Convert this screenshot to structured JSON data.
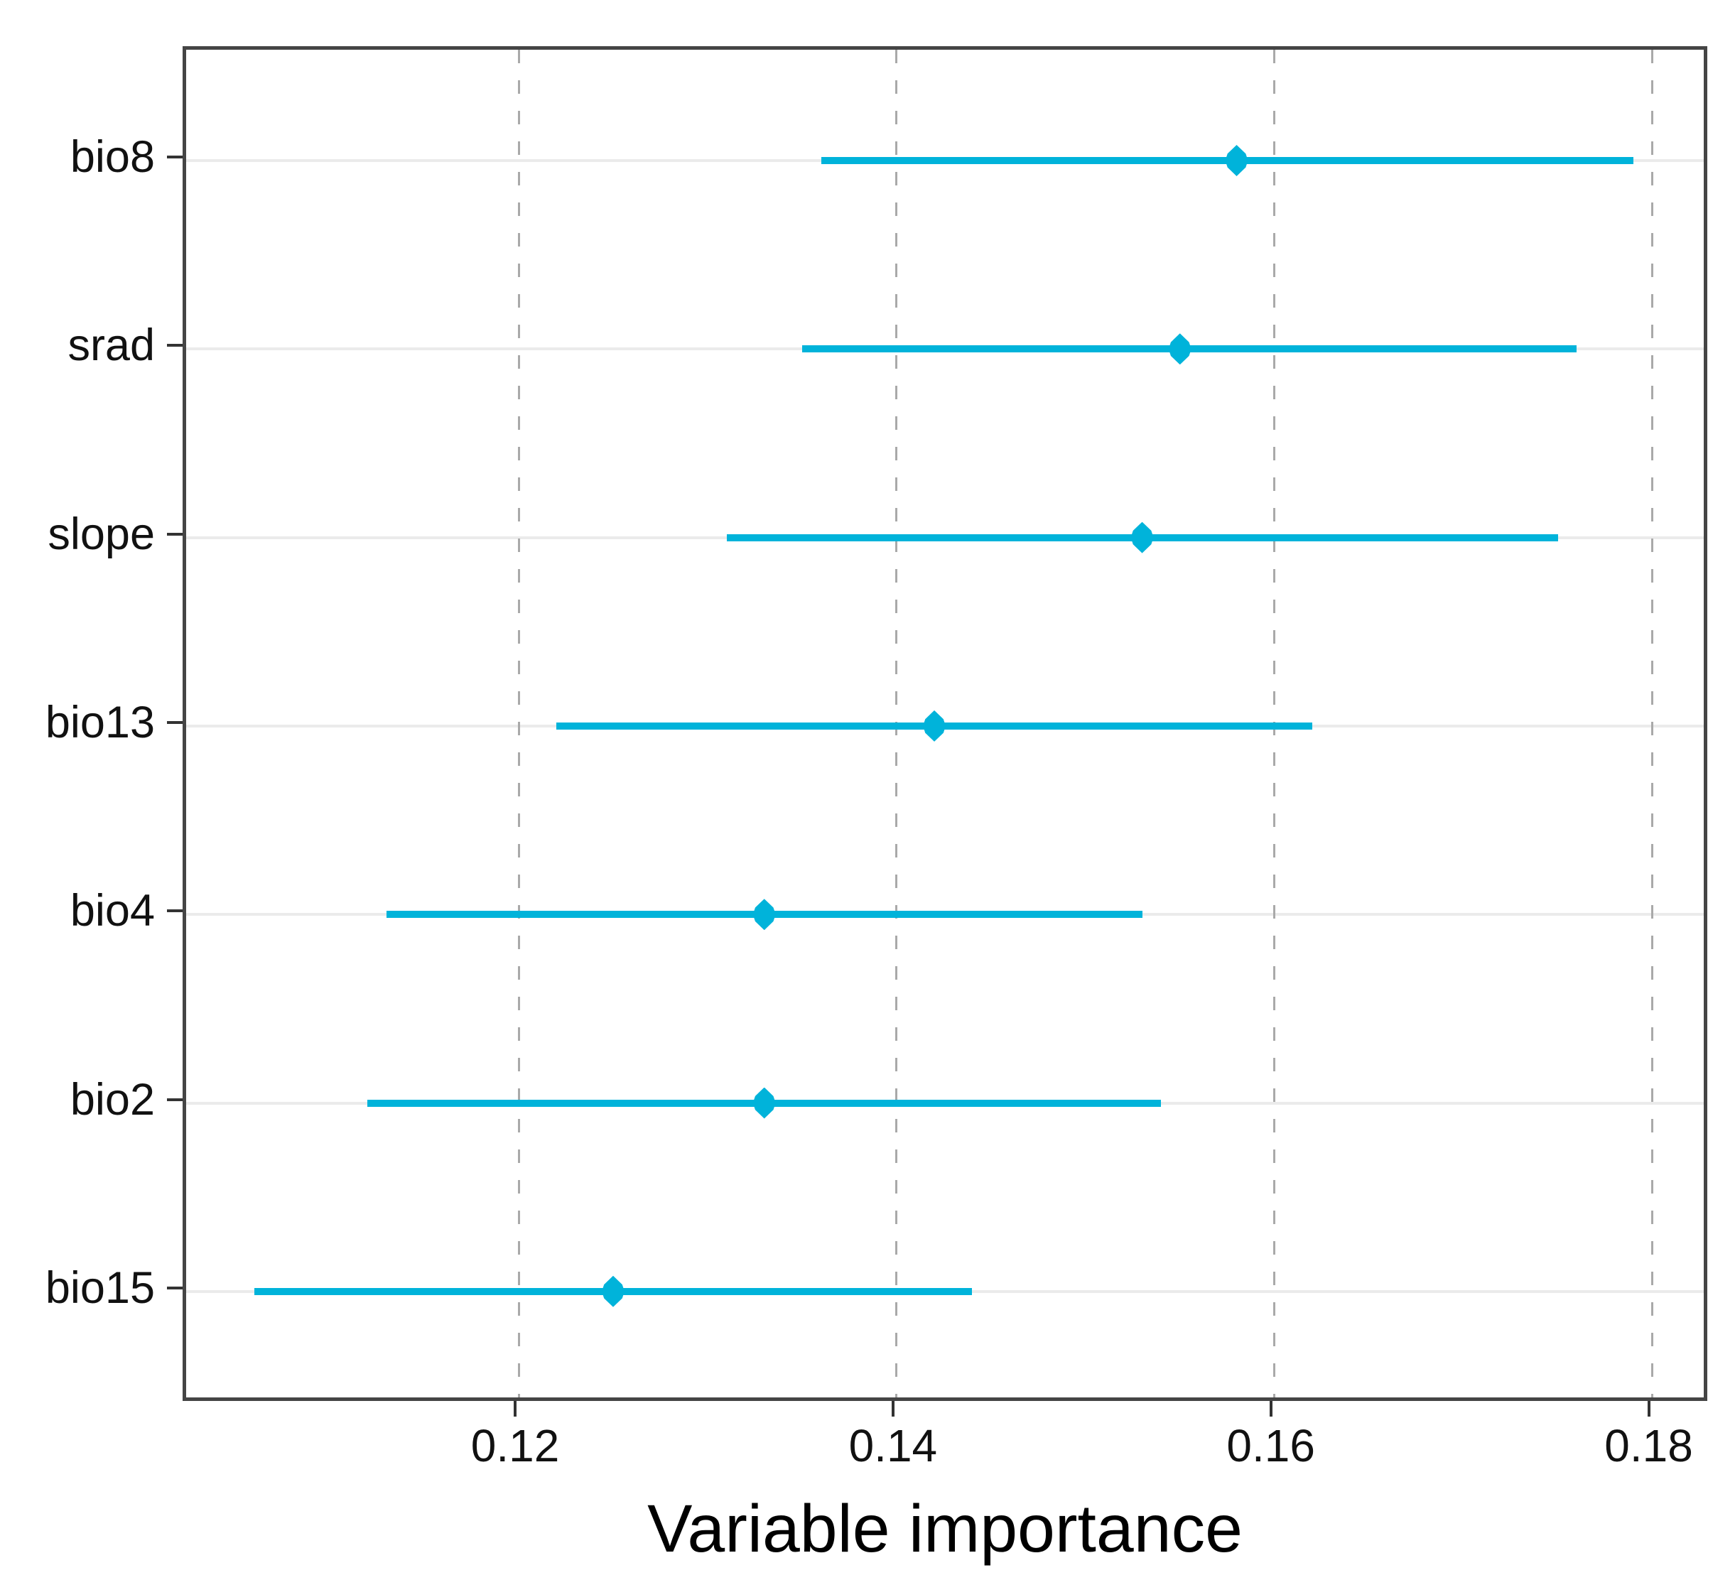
{
  "chart_data": {
    "type": "scatter",
    "subtype": "horizontal-pointrange (dot with interval/error bar per category)",
    "title": "",
    "xlabel": "Variable importance",
    "ylabel": "",
    "categories": [
      "bio8",
      "srad",
      "slope",
      "bio13",
      "bio4",
      "bio2",
      "bio15"
    ],
    "series": [
      {
        "name": "variable importance",
        "values": [
          0.158,
          0.155,
          0.153,
          0.142,
          0.133,
          0.133,
          0.125
        ],
        "ci_low": [
          0.136,
          0.135,
          0.131,
          0.122,
          0.113,
          0.112,
          0.106
        ],
        "ci_high": [
          0.179,
          0.176,
          0.175,
          0.162,
          0.153,
          0.154,
          0.144
        ]
      }
    ],
    "xlim": [
      0.1024,
      0.1831
    ],
    "xticks": [
      0.12,
      0.14,
      0.16,
      0.18
    ],
    "xtick_labels": [
      "0.12",
      "0.14",
      "0.16",
      "0.18"
    ],
    "grid": {
      "vertical": "dashed-gray",
      "horizontal": "light-solid-at-each-category"
    },
    "legend": "none",
    "colors": {
      "point": "#00b3da",
      "interval": "#00b3da",
      "dashed_gridline": "#a9a9a9",
      "row_gridline": "#ebebeb",
      "panel_border": "#454545",
      "tick": "#333333",
      "text": "#111111"
    }
  }
}
